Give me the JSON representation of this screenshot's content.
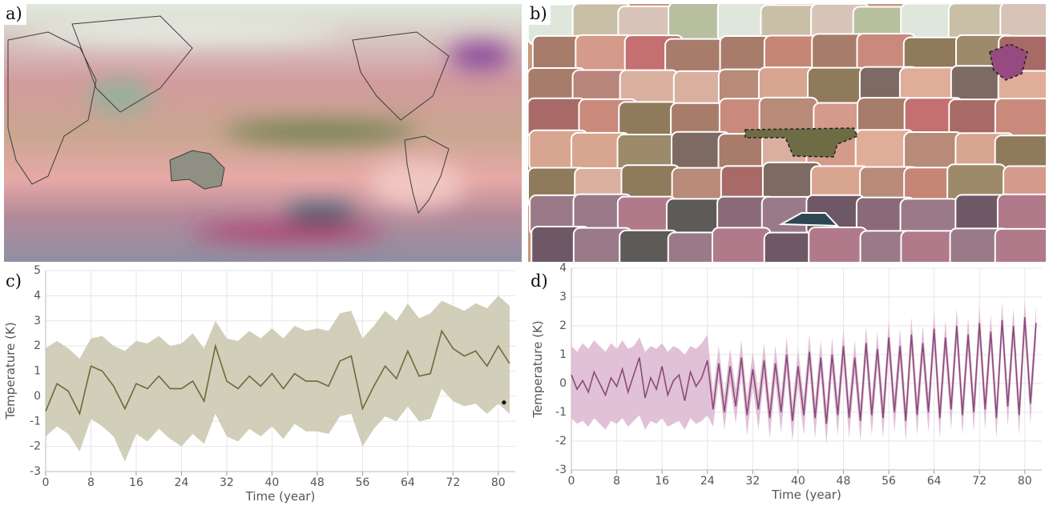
{
  "panel_labels": [
    "a)",
    "b)",
    "c)",
    "d)"
  ],
  "chart_data": [
    {
      "type": "line",
      "ylabel": "Temperature (K)",
      "xlabel": "Time (year)",
      "xlim": [
        0,
        83
      ],
      "xticks": [
        0,
        8,
        16,
        24,
        32,
        40,
        48,
        56,
        64,
        72,
        80
      ],
      "ylim": [
        -3,
        5
      ],
      "yticks": [
        -3,
        -2,
        -1,
        0,
        1,
        2,
        3,
        4,
        5
      ],
      "grid": true,
      "color": "#6b6b3a",
      "band_color": "#c9c6ad",
      "x": [
        0,
        2,
        4,
        6,
        8,
        10,
        12,
        14,
        16,
        18,
        20,
        22,
        24,
        26,
        28,
        30,
        32,
        34,
        36,
        38,
        40,
        42,
        44,
        46,
        48,
        50,
        52,
        54,
        56,
        58,
        60,
        62,
        64,
        66,
        68,
        70,
        72,
        74,
        76,
        78,
        80,
        82
      ],
      "values": [
        -0.6,
        0.5,
        0.2,
        -0.7,
        1.2,
        1.0,
        0.4,
        -0.5,
        0.5,
        0.3,
        0.8,
        0.3,
        0.3,
        0.6,
        -0.2,
        2.0,
        0.6,
        0.3,
        0.8,
        0.4,
        0.9,
        0.3,
        0.9,
        0.6,
        0.6,
        0.4,
        1.4,
        1.6,
        -0.5,
        0.4,
        1.2,
        0.7,
        1.8,
        0.8,
        0.9,
        2.6,
        1.9,
        1.6,
        1.8,
        1.2,
        2.0,
        1.3
      ],
      "lower": [
        -1.6,
        -1.2,
        -1.5,
        -2.2,
        -0.9,
        -1.2,
        -1.6,
        -2.6,
        -1.5,
        -1.8,
        -1.3,
        -1.7,
        -2.0,
        -1.5,
        -1.9,
        -0.7,
        -1.6,
        -1.8,
        -1.3,
        -1.6,
        -1.2,
        -1.7,
        -1.1,
        -1.4,
        -1.4,
        -1.5,
        -0.8,
        -0.7,
        -2.0,
        -1.3,
        -0.8,
        -1.0,
        -0.4,
        -1.0,
        -0.9,
        0.3,
        -0.2,
        -0.4,
        -0.3,
        -0.7,
        -0.3,
        -0.7
      ],
      "upper": [
        1.9,
        2.2,
        1.9,
        1.5,
        2.3,
        2.4,
        2.0,
        1.8,
        2.2,
        2.1,
        2.4,
        2.0,
        2.1,
        2.5,
        1.9,
        3.0,
        2.3,
        2.2,
        2.6,
        2.3,
        2.7,
        2.3,
        2.8,
        2.6,
        2.7,
        2.6,
        3.3,
        3.4,
        2.3,
        2.8,
        3.4,
        3.0,
        3.7,
        3.1,
        3.3,
        3.8,
        3.6,
        3.4,
        3.7,
        3.5,
        4.0,
        3.6
      ],
      "points": [
        {
          "x": 81,
          "y": -0.25
        }
      ]
    },
    {
      "type": "line",
      "ylabel": "Temperature (K)",
      "xlabel": "Time (year)",
      "xlim": [
        0,
        83
      ],
      "xticks": [
        0,
        8,
        16,
        24,
        32,
        40,
        48,
        56,
        64,
        72,
        80
      ],
      "ylim": [
        -3,
        4
      ],
      "yticks": [
        -3,
        -2,
        -1,
        0,
        1,
        2,
        3,
        4
      ],
      "grid": true,
      "color": "#8b4a78",
      "band_color": "#dcb6d0",
      "x": [
        0,
        1,
        2,
        3,
        4,
        5,
        6,
        7,
        8,
        9,
        10,
        11,
        12,
        13,
        14,
        15,
        16,
        17,
        18,
        19,
        20,
        21,
        22,
        23,
        24,
        25,
        26,
        27,
        28,
        29,
        30,
        31,
        32,
        33,
        34,
        35,
        36,
        37,
        38,
        39,
        40,
        41,
        42,
        43,
        44,
        45,
        46,
        47,
        48,
        49,
        50,
        51,
        52,
        53,
        54,
        55,
        56,
        57,
        58,
        59,
        60,
        61,
        62,
        63,
        64,
        65,
        66,
        67,
        68,
        69,
        70,
        71,
        72,
        73,
        74,
        75,
        76,
        77,
        78,
        79,
        80,
        81,
        82
      ],
      "values": [
        0.3,
        -0.2,
        0.1,
        -0.3,
        0.4,
        0.0,
        -0.4,
        0.2,
        -0.1,
        0.5,
        -0.3,
        0.3,
        0.9,
        -0.5,
        0.2,
        -0.2,
        0.6,
        -0.4,
        0.1,
        0.3,
        -0.6,
        0.4,
        -0.1,
        0.2,
        0.8,
        -0.9,
        0.7,
        -1.0,
        0.6,
        -0.8,
        0.9,
        -1.1,
        0.5,
        -0.9,
        0.8,
        -1.2,
        0.7,
        -1.0,
        1.0,
        -1.3,
        0.6,
        -1.1,
        1.1,
        -1.2,
        0.9,
        -1.4,
        1.0,
        -1.1,
        1.3,
        -1.2,
        0.9,
        -1.3,
        1.4,
        -1.1,
        1.2,
        -1.2,
        1.6,
        -1.0,
        1.3,
        -1.3,
        1.7,
        -1.1,
        1.4,
        -1.0,
        1.9,
        -1.2,
        1.6,
        -0.9,
        2.0,
        -1.1,
        1.7,
        -1.0,
        2.1,
        -0.9,
        1.8,
        -1.2,
        2.2,
        -0.8,
        2.0,
        -1.1,
        2.3,
        -0.7,
        2.1
      ],
      "lower": [
        -1.2,
        -1.4,
        -1.3,
        -1.5,
        -1.2,
        -1.4,
        -1.6,
        -1.3,
        -1.4,
        -1.2,
        -1.5,
        -1.3,
        -1.1,
        -1.6,
        -1.3,
        -1.4,
        -1.2,
        -1.5,
        -1.4,
        -1.3,
        -1.6,
        -1.2,
        -1.4,
        -1.3,
        -1.1,
        -1.5,
        0.1,
        -1.6,
        0.0,
        -1.4,
        0.3,
        -1.8,
        -0.1,
        -1.6,
        0.2,
        -1.9,
        0.1,
        -1.7,
        0.4,
        -2.0,
        0.0,
        -1.8,
        0.5,
        -1.9,
        0.3,
        -2.1,
        0.4,
        -1.8,
        0.7,
        -1.9,
        0.3,
        -2.0,
        0.8,
        -1.8,
        0.6,
        -1.9,
        1.0,
        -1.7,
        0.7,
        -2.0,
        1.1,
        -1.8,
        0.8,
        -1.7,
        1.3,
        -1.9,
        1.0,
        -1.6,
        1.4,
        -1.8,
        1.1,
        -1.7,
        1.5,
        -1.6,
        1.2,
        -1.9,
        1.6,
        -1.5,
        1.4,
        -1.8,
        1.7,
        -1.4,
        1.5
      ],
      "upper": [
        1.3,
        1.1,
        1.4,
        1.2,
        1.5,
        1.3,
        1.1,
        1.4,
        1.2,
        1.5,
        1.2,
        1.3,
        1.6,
        1.1,
        1.3,
        1.2,
        1.4,
        1.1,
        1.3,
        1.2,
        1.0,
        1.3,
        1.2,
        1.4,
        1.7,
        -0.3,
        1.3,
        -0.4,
        1.2,
        -0.2,
        1.5,
        -0.5,
        1.1,
        -0.3,
        1.4,
        -0.6,
        1.3,
        -0.4,
        1.6,
        -0.7,
        1.2,
        -0.5,
        1.7,
        -0.6,
        1.5,
        -0.8,
        1.6,
        -0.5,
        1.9,
        -0.6,
        1.5,
        -0.7,
        2.0,
        -0.5,
        1.8,
        -0.6,
        2.2,
        -0.4,
        1.9,
        -0.7,
        2.3,
        -0.5,
        2.0,
        -0.4,
        2.5,
        -0.6,
        2.2,
        -0.3,
        2.6,
        -0.5,
        2.3,
        -0.4,
        2.7,
        -0.3,
        2.4,
        -0.6,
        2.8,
        -0.2,
        2.6,
        -0.5,
        2.9,
        -0.1,
        2.7
      ]
    }
  ]
}
